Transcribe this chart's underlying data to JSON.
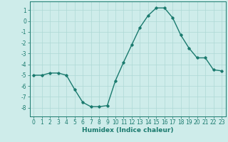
{
  "x": [
    0,
    1,
    2,
    3,
    4,
    5,
    6,
    7,
    8,
    9,
    10,
    11,
    12,
    13,
    14,
    15,
    16,
    17,
    18,
    19,
    20,
    21,
    22,
    23
  ],
  "y": [
    -5.0,
    -5.0,
    -4.8,
    -4.8,
    -5.0,
    -6.3,
    -7.5,
    -7.9,
    -7.9,
    -7.8,
    -5.5,
    -3.8,
    -2.2,
    -0.6,
    0.5,
    1.2,
    1.2,
    0.3,
    -1.3,
    -2.5,
    -3.4,
    -3.4,
    -4.5,
    -4.6
  ],
  "xlabel": "Humidex (Indice chaleur)",
  "ylim": [
    -8.8,
    1.8
  ],
  "xlim": [
    -0.5,
    23.5
  ],
  "yticks": [
    1,
    0,
    -1,
    -2,
    -3,
    -4,
    -5,
    -6,
    -7,
    -8
  ],
  "xticks": [
    0,
    1,
    2,
    3,
    4,
    5,
    6,
    7,
    8,
    9,
    10,
    11,
    12,
    13,
    14,
    15,
    16,
    17,
    18,
    19,
    20,
    21,
    22,
    23
  ],
  "line_color": "#1a7a6e",
  "marker": "D",
  "marker_size": 1.8,
  "bg_color": "#ceecea",
  "grid_color": "#aed8d5",
  "axis_color": "#1a7a6e",
  "tick_color": "#1a7a6e",
  "label_color": "#1a7a6e",
  "xlabel_fontsize": 6.5,
  "tick_fontsize": 5.5,
  "line_width": 1.0
}
